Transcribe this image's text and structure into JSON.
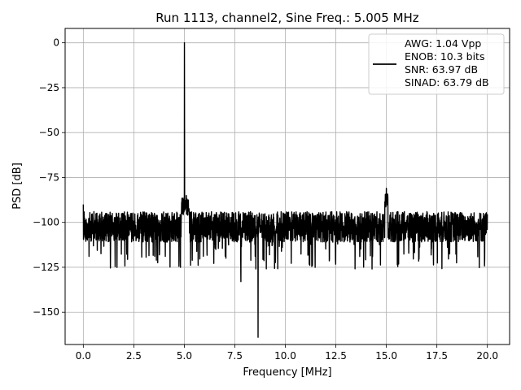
{
  "chart_data": {
    "type": "line",
    "title": "Run 1113, channel2, Sine Freq.: 5.005 MHz",
    "xlabel": "Frequency [MHz]",
    "ylabel": "PSD [dB]",
    "xlim": [
      -0.9,
      21.1
    ],
    "ylim": [
      -168,
      8
    ],
    "xticks": [
      0.0,
      2.5,
      5.0,
      7.5,
      10.0,
      12.5,
      15.0,
      17.5,
      20.0
    ],
    "xtick_labels": [
      "0.0",
      "2.5",
      "5.0",
      "7.5",
      "10.0",
      "12.5",
      "15.0",
      "17.5",
      "20.0"
    ],
    "yticks": [
      0,
      -25,
      -50,
      -75,
      -100,
      -125,
      -150
    ],
    "ytick_labels": [
      "0",
      "−25",
      "−50",
      "−75",
      "−100",
      "−125",
      "−150"
    ],
    "grid": true,
    "legend_position": "top-right",
    "legend_lines": [
      "AWG: 1.04 Vpp",
      "ENOB: 10.3 bits",
      "SNR: 63.97 dB",
      "SINAD: 63.79 dB"
    ],
    "line_color": "#000000",
    "series": [
      {
        "noise_floor_db": -102,
        "noise_band_db": [
          -111,
          -94
        ],
        "x_range": [
          0.0,
          20.0
        ],
        "features": [
          {
            "x": 0.0,
            "y": -90
          },
          {
            "x": 5.005,
            "y": 0
          },
          {
            "x": 5.1,
            "y": -85
          },
          {
            "x": 7.8,
            "y": -133
          },
          {
            "x": 8.65,
            "y": -164
          },
          {
            "x": 15.0,
            "y": -81
          }
        ]
      }
    ]
  }
}
